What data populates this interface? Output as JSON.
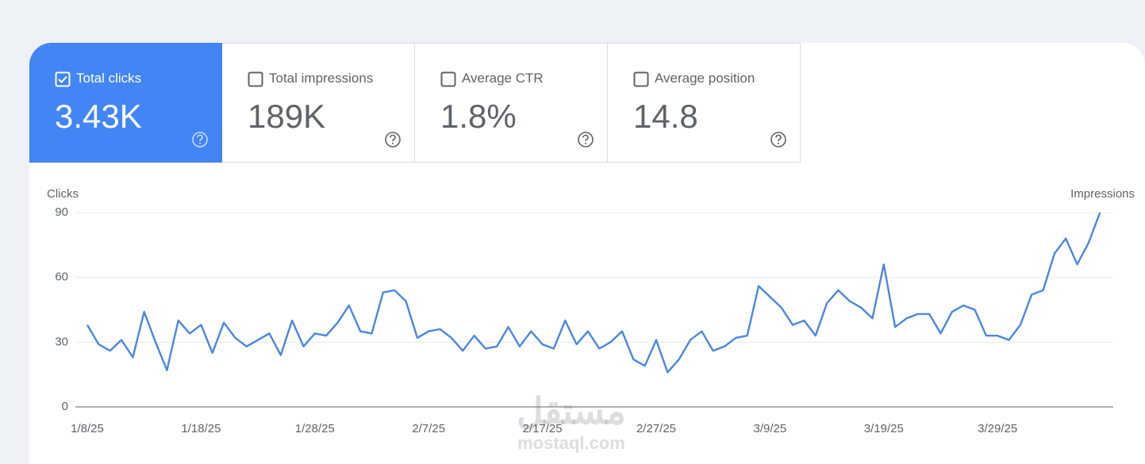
{
  "cards": [
    {
      "label": "Total clicks",
      "value": "3.43K",
      "checked": true
    },
    {
      "label": "Total impressions",
      "value": "189K",
      "checked": false
    },
    {
      "label": "Average CTR",
      "value": "1.8%",
      "checked": false
    },
    {
      "label": "Average position",
      "value": "14.8",
      "checked": false
    }
  ],
  "chart_data": {
    "type": "line",
    "y_label": "Clicks",
    "y2_label": "Impressions",
    "color": "#4a86e0",
    "categories": [
      "1/8/25",
      null,
      null,
      null,
      null,
      null,
      null,
      null,
      null,
      null,
      "1/18/25",
      null,
      null,
      null,
      null,
      null,
      null,
      null,
      null,
      null,
      "1/28/25",
      null,
      null,
      null,
      null,
      null,
      null,
      null,
      null,
      null,
      "2/7/25",
      null,
      null,
      null,
      null,
      null,
      null,
      null,
      null,
      null,
      "2/17/25",
      null,
      null,
      null,
      null,
      null,
      null,
      null,
      null,
      null,
      "2/27/25",
      null,
      null,
      null,
      null,
      null,
      null,
      null,
      null,
      null,
      "3/9/25",
      null,
      null,
      null,
      null,
      null,
      null,
      null,
      null,
      null,
      "3/19/25",
      null,
      null,
      null,
      null,
      null,
      null,
      null,
      null,
      null,
      "3/29/25",
      null,
      null,
      null,
      null,
      null,
      null,
      null,
      null,
      null
    ],
    "values": [
      38,
      29,
      26,
      31,
      23,
      44,
      30,
      17,
      40,
      34,
      38,
      25,
      39,
      32,
      28,
      31,
      34,
      24,
      40,
      28,
      34,
      33,
      39,
      47,
      35,
      34,
      53,
      54,
      49,
      32,
      35,
      36,
      32,
      26,
      33,
      27,
      28,
      37,
      28,
      35,
      29,
      27,
      40,
      29,
      35,
      27,
      30,
      35,
      22,
      19,
      31,
      16,
      22,
      31,
      35,
      26,
      28,
      32,
      33,
      56,
      51,
      46,
      38,
      40,
      33,
      48,
      54,
      49,
      46,
      41,
      66,
      37,
      41,
      43,
      43,
      34,
      44,
      47,
      45,
      33,
      33,
      31,
      38,
      52,
      54,
      71,
      78,
      66,
      76,
      90
    ],
    "ylim": [
      0,
      90
    ],
    "yticks": [
      0,
      30,
      60,
      90
    ],
    "grid": true
  },
  "watermark": {
    "arabic": "مستقل",
    "latin": "mostaql.com"
  }
}
